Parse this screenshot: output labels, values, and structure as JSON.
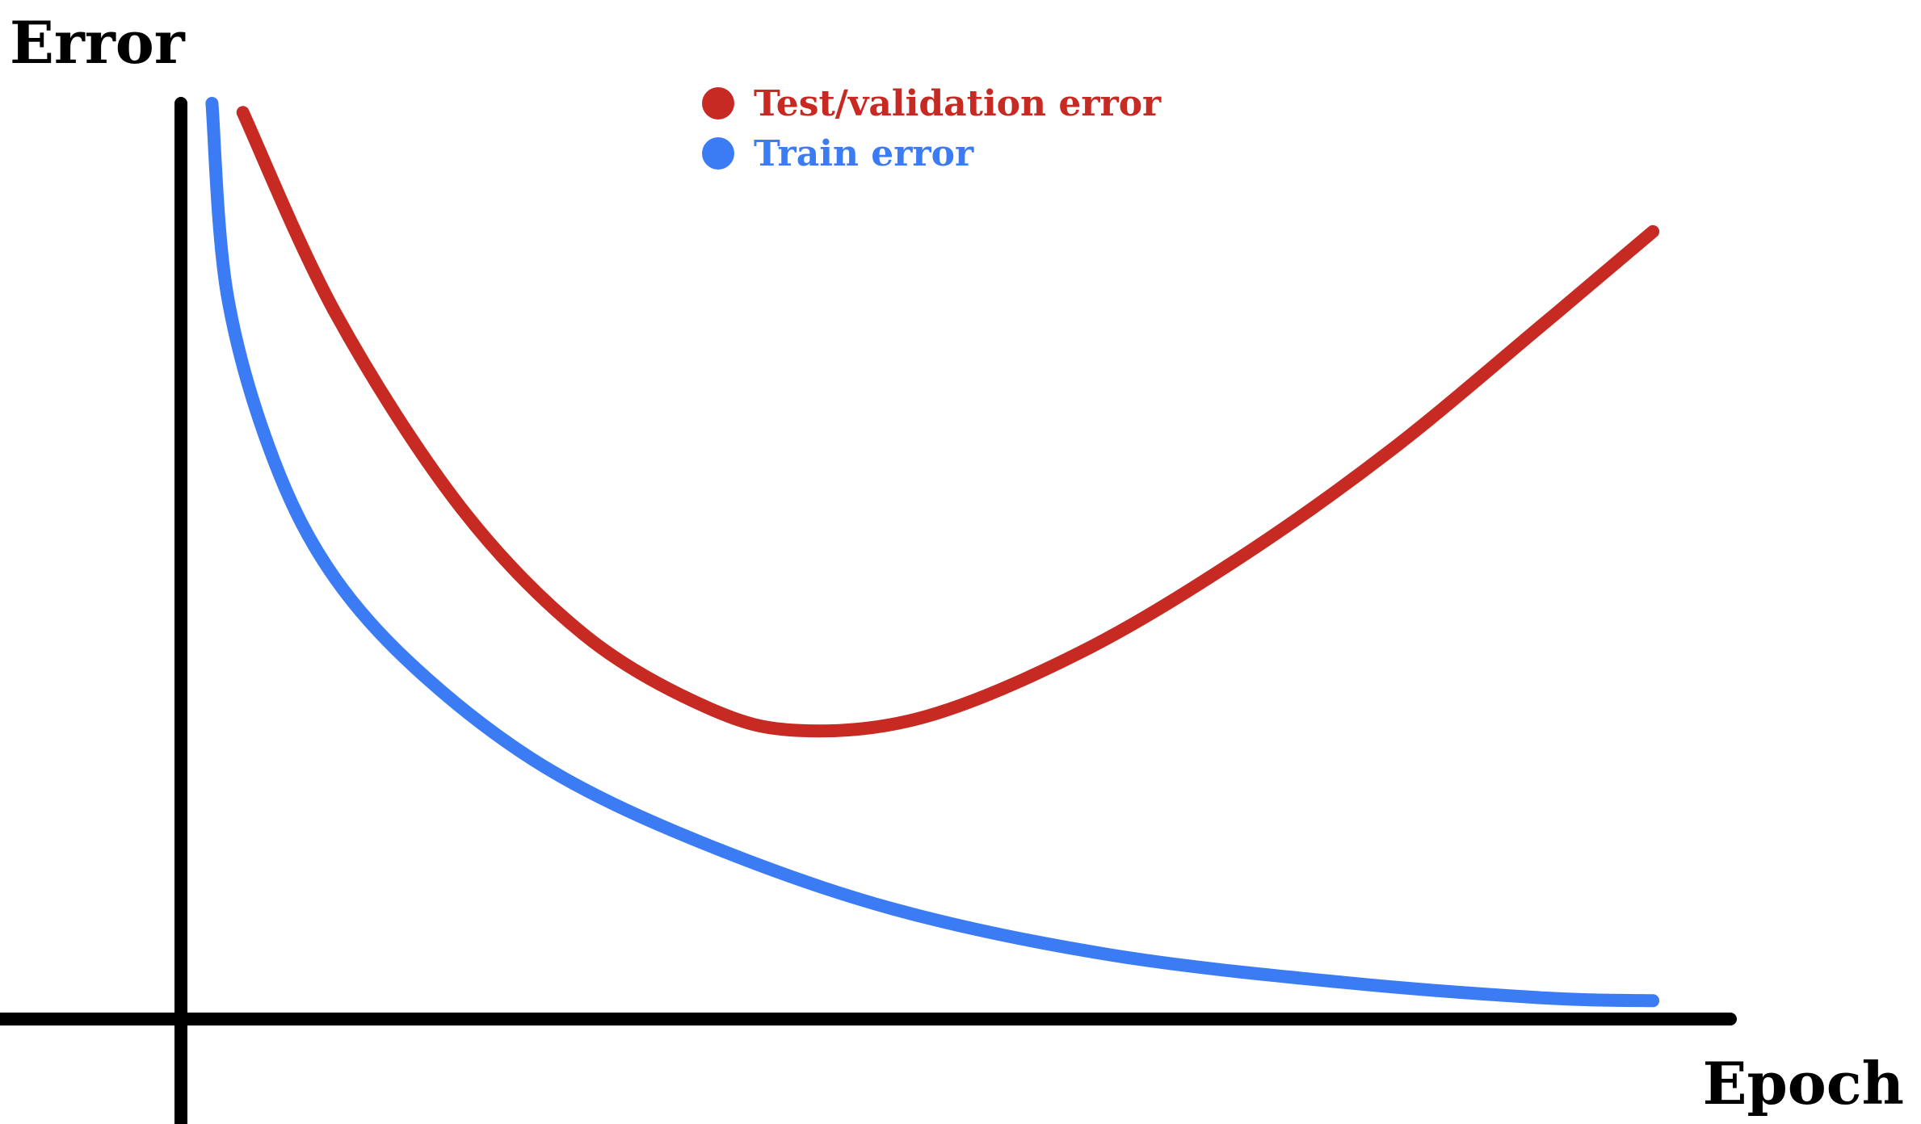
{
  "chart_data": {
    "type": "line",
    "title": "",
    "xlabel": "Epoch",
    "ylabel": "Error",
    "grid": false,
    "ticks": false,
    "legend_position": "top-center",
    "xlim": [
      0,
      100
    ],
    "ylim": [
      0,
      100
    ],
    "series": [
      {
        "name": "Test/validation error",
        "color": "#c62a22",
        "x": [
          4,
          10,
          18,
          26,
          34,
          40,
          48,
          58,
          68,
          78,
          88,
          95
        ],
        "y": [
          99,
          77,
          56,
          42,
          34,
          31.5,
          33,
          40,
          50,
          62,
          76,
          86
        ]
      },
      {
        "name": "Train error",
        "color": "#3b7cf4",
        "x": [
          2,
          3,
          6,
          10,
          16,
          24,
          34,
          46,
          60,
          75,
          88,
          95
        ],
        "y": [
          100,
          79,
          61,
          48,
          37,
          27,
          19,
          12,
          7,
          4,
          2.3,
          2
        ]
      }
    ]
  }
}
